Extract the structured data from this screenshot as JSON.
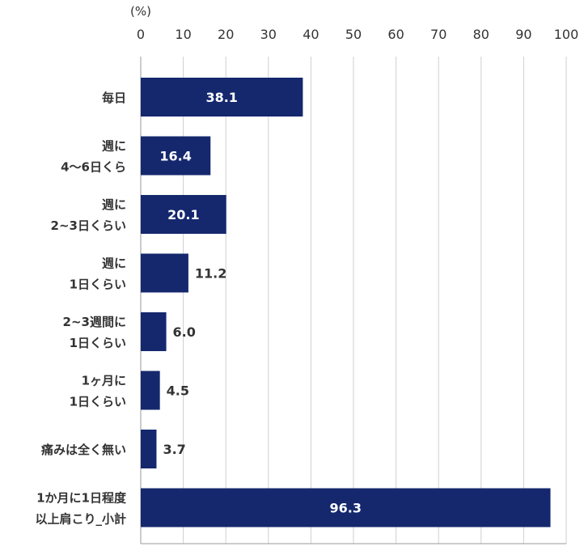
{
  "chart_data": {
    "type": "bar",
    "orientation": "horizontal",
    "unit": "(%)",
    "xlim": [
      0,
      100
    ],
    "ticks": [
      0,
      10,
      20,
      30,
      40,
      50,
      60,
      70,
      80,
      90,
      100
    ],
    "grid": true,
    "categories": [
      {
        "lines": [
          "毎日"
        ],
        "value": 38.1,
        "label": "38.1"
      },
      {
        "lines": [
          "週に",
          "4〜6日くら"
        ],
        "value": 16.4,
        "label": "16.4"
      },
      {
        "lines": [
          "週に",
          "2~3日くらい"
        ],
        "value": 20.1,
        "label": "20.1"
      },
      {
        "lines": [
          "週に",
          "1日くらい"
        ],
        "value": 11.2,
        "label": "11.2"
      },
      {
        "lines": [
          "2~3週間に",
          "1日くらい"
        ],
        "value": 6.0,
        "label": "6.0"
      },
      {
        "lines": [
          "1ヶ月に",
          "1日くらい"
        ],
        "value": 4.5,
        "label": "4.5"
      },
      {
        "lines": [
          "痛みは全く無い"
        ],
        "value": 3.7,
        "label": "3.7"
      },
      {
        "lines": [
          "1か月に1日程度",
          "以上肩こり_小計"
        ],
        "value": 96.3,
        "label": "96.3"
      }
    ],
    "colors": {
      "bar": "#15286e",
      "grid": "#cfcfcf",
      "axis": "#9a9a9a"
    }
  }
}
